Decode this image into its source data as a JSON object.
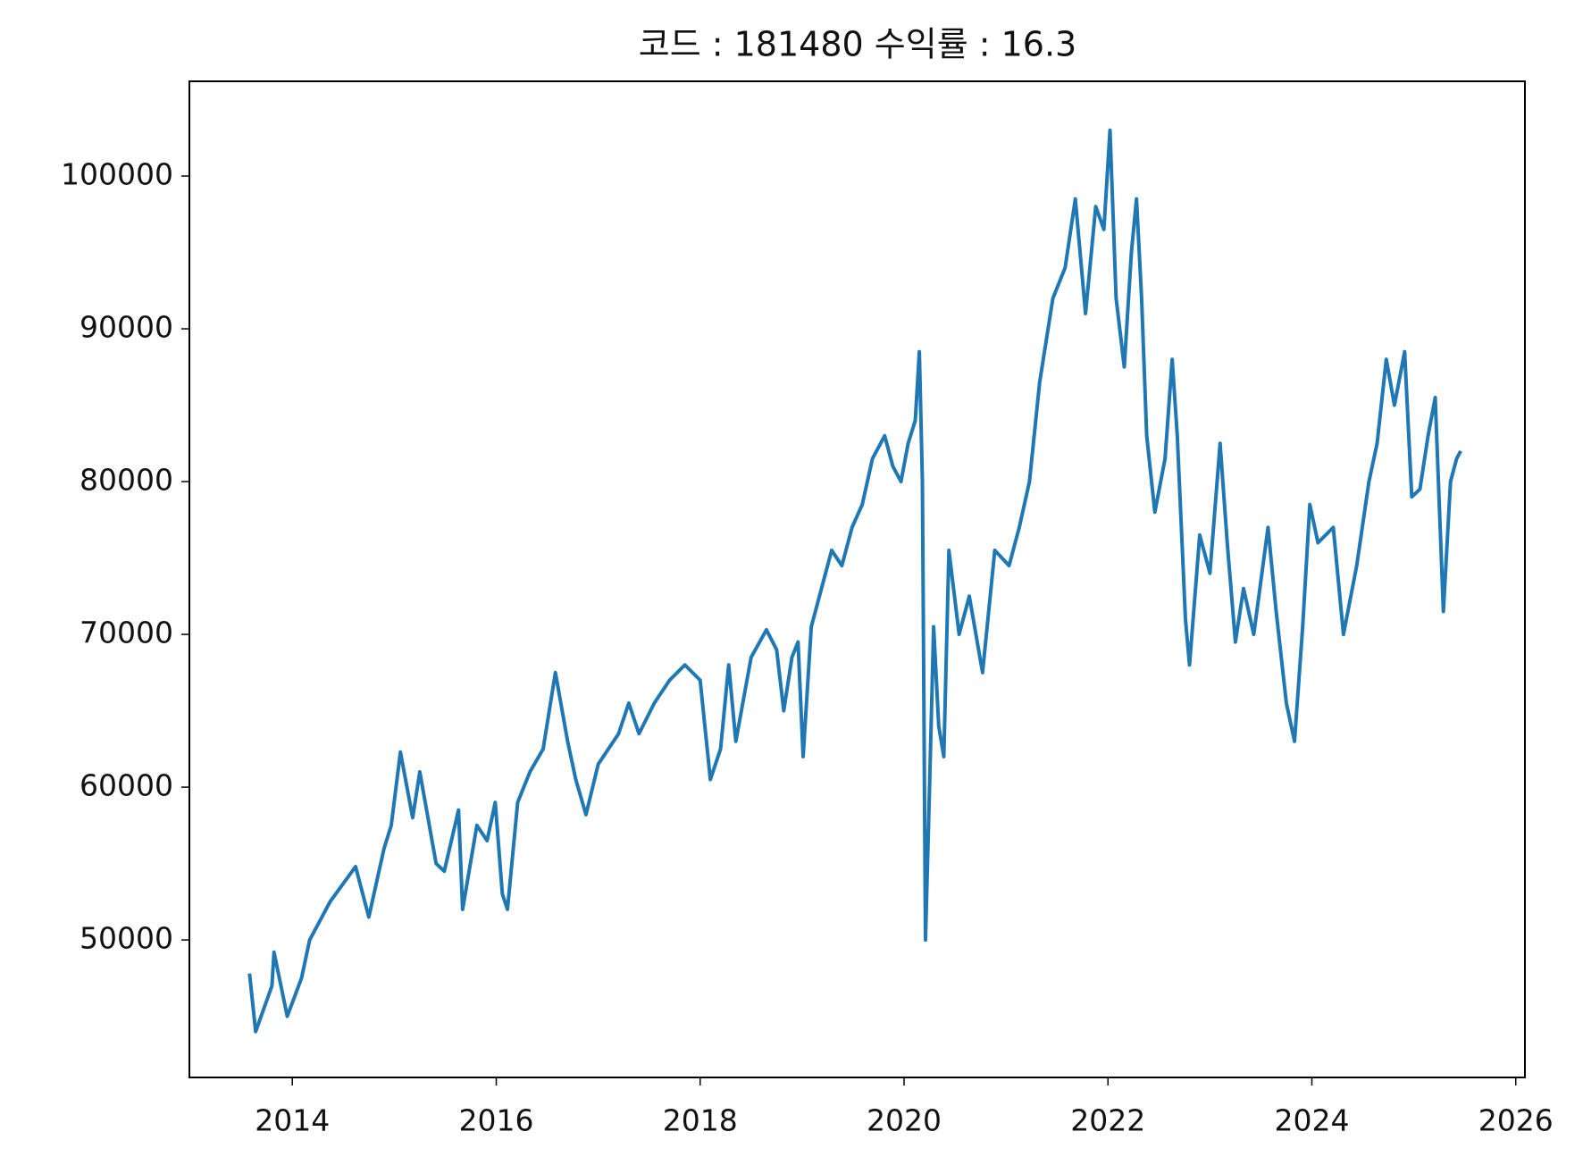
{
  "chart_data": {
    "type": "line",
    "title": "코드 : 181480 수익률 : 16.3",
    "color": "#1f77b4",
    "x": [
      2013.58,
      2013.64,
      2013.8,
      2013.82,
      2013.95,
      2014.09,
      2014.17,
      2014.37,
      2014.62,
      2014.75,
      2014.9,
      2014.97,
      2015.06,
      2015.18,
      2015.25,
      2015.41,
      2015.49,
      2015.63,
      2015.67,
      2015.81,
      2015.91,
      2015.99,
      2016.06,
      2016.11,
      2016.21,
      2016.33,
      2016.46,
      2016.58,
      2016.7,
      2016.78,
      2016.88,
      2017.0,
      2017.1,
      2017.2,
      2017.3,
      2017.4,
      2017.55,
      2017.7,
      2017.85,
      2018.0,
      2018.1,
      2018.2,
      2018.28,
      2018.35,
      2018.5,
      2018.65,
      2018.75,
      2018.82,
      2018.9,
      2018.96,
      2019.01,
      2019.09,
      2019.17,
      2019.29,
      2019.39,
      2019.49,
      2019.59,
      2019.69,
      2019.81,
      2019.89,
      2019.97,
      2020.04,
      2020.11,
      2020.15,
      2020.18,
      2020.21,
      2020.25,
      2020.29,
      2020.34,
      2020.39,
      2020.44,
      2020.54,
      2020.64,
      2020.77,
      2020.89,
      2021.03,
      2021.13,
      2021.23,
      2021.33,
      2021.46,
      2021.58,
      2021.68,
      2021.78,
      2021.88,
      2021.96,
      2022.02,
      2022.08,
      2022.16,
      2022.23,
      2022.28,
      2022.33,
      2022.38,
      2022.46,
      2022.56,
      2022.63,
      2022.68,
      2022.76,
      2022.8,
      2022.9,
      2023.0,
      2023.1,
      2023.17,
      2023.25,
      2023.33,
      2023.43,
      2023.52,
      2023.57,
      2023.65,
      2023.75,
      2023.83,
      2023.91,
      2023.98,
      2024.06,
      2024.21,
      2024.31,
      2024.44,
      2024.56,
      2024.64,
      2024.73,
      2024.81,
      2024.91,
      2024.98,
      2025.06,
      2025.14,
      2025.21,
      2025.29,
      2025.36,
      2025.42,
      2025.46
    ],
    "values": [
      47800,
      44000,
      47000,
      49200,
      45000,
      47500,
      50000,
      52500,
      54800,
      51500,
      56000,
      57500,
      62300,
      58000,
      61000,
      55000,
      54500,
      58500,
      52000,
      57500,
      56500,
      59000,
      53000,
      52000,
      59000,
      61000,
      62500,
      67500,
      63000,
      60500,
      58200,
      61500,
      62500,
      63500,
      65500,
      63500,
      65500,
      67000,
      68000,
      67000,
      60500,
      62500,
      68000,
      63000,
      68500,
      70300,
      69000,
      65000,
      68500,
      69500,
      62000,
      70500,
      72500,
      75500,
      74500,
      77000,
      78500,
      81500,
      83000,
      81000,
      80000,
      82500,
      84000,
      88500,
      80000,
      50000,
      60000,
      70500,
      64000,
      62000,
      75500,
      70000,
      72500,
      67500,
      75500,
      74500,
      77000,
      80000,
      86500,
      92000,
      94000,
      98500,
      91000,
      98000,
      96500,
      103000,
      92000,
      87500,
      95000,
      98500,
      92000,
      83000,
      78000,
      81500,
      88000,
      83000,
      71000,
      68000,
      76500,
      74000,
      82500,
      76000,
      69500,
      73000,
      70000,
      74500,
      77000,
      71500,
      65500,
      63000,
      70500,
      78500,
      76000,
      77000,
      70000,
      74500,
      80000,
      82500,
      88000,
      85000,
      88500,
      79000,
      79500,
      83000,
      85500,
      71500,
      80000,
      81500,
      82000
    ],
    "xlim": [
      2012.99,
      2026.09
    ],
    "xticks": [
      2014,
      2016,
      2018,
      2020,
      2022,
      2024,
      2026
    ],
    "ylim": [
      41000,
      106200
    ],
    "yticks": [
      50000,
      60000,
      70000,
      80000,
      90000,
      100000
    ]
  }
}
